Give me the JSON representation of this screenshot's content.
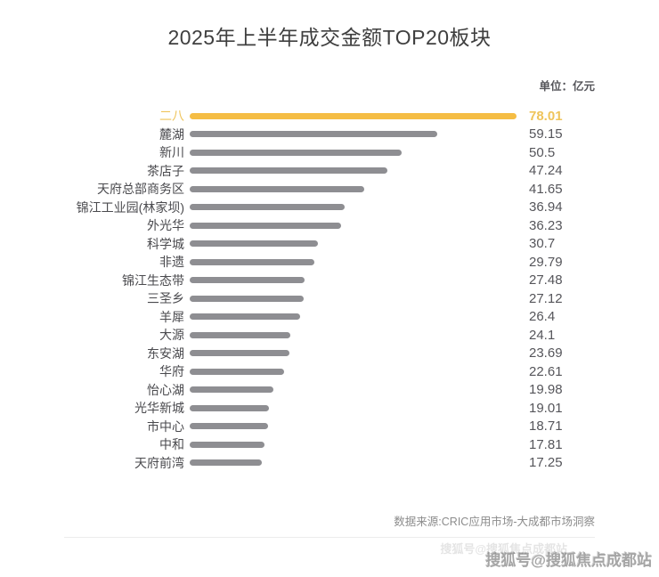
{
  "page": {
    "title": "2025年上半年成交金额TOP20板块",
    "unit_label": "单位：亿元",
    "source": "数据来源:CRIC应用市场-大成都市场洞察",
    "watermark": "搜狐号@搜狐焦点成都站",
    "watermark_ghost": "搜狐号@搜狐焦点成都站"
  },
  "colors": {
    "highlight_bar": "#f5bd44",
    "highlight_text": "#efc45b",
    "bar_gray": "#8e8e92",
    "label_text": "#4a4a4e",
    "value_text": "#55555a",
    "title_text": "#3f3f3f",
    "source_text": "#8c8c8c",
    "background": "#ffffff"
  },
  "chart_data": {
    "type": "bar",
    "orientation": "horizontal",
    "title": "2025年上半年成交金额TOP20板块",
    "unit": "亿元",
    "categories": [
      "二八",
      "麓湖",
      "新川",
      "茶店子",
      "天府总部商务区",
      "锦江工业园(林家坝)",
      "外光华",
      "科学城",
      "非遗",
      "锦江生态带",
      "三圣乡",
      "羊犀",
      "大源",
      "东安湖",
      "华府",
      "怡心湖",
      "光华新城",
      "市中心",
      "中和",
      "天府前湾"
    ],
    "values": [
      78.01,
      59.15,
      50.5,
      47.24,
      41.65,
      36.94,
      36.23,
      30.7,
      29.79,
      27.48,
      27.12,
      26.4,
      24.1,
      23.69,
      22.61,
      19.98,
      19.01,
      18.71,
      17.81,
      17.25
    ],
    "value_labels": [
      "78.01",
      "59.15",
      "50.5",
      "47.24",
      "41.65",
      "36.94",
      "36.23",
      "30.7",
      "29.79",
      "27.48",
      "27.12",
      "26.4",
      "24.1",
      "23.69",
      "22.61",
      "19.98",
      "19.01",
      "18.71",
      "17.81",
      "17.25"
    ],
    "highlight_index": 0,
    "xlim": [
      0,
      78.01
    ],
    "grid": false,
    "legend": "none",
    "data_labels_position": "right",
    "source": "数据来源:CRIC应用市场-大成都市场洞察"
  }
}
